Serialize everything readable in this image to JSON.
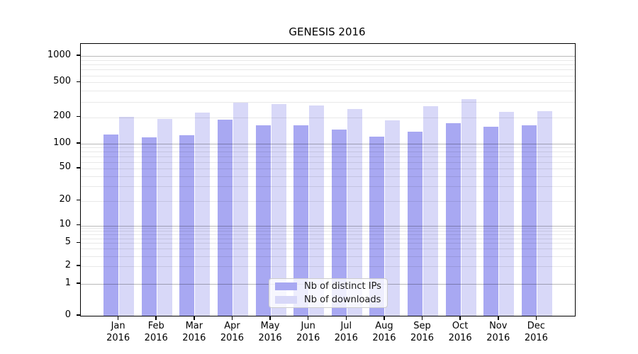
{
  "title": "GENESIS 2016",
  "chart_data": {
    "type": "bar",
    "title": "GENESIS 2016",
    "xlabel": "",
    "ylabel": "",
    "y_scale": "symlog",
    "ylim": [
      0,
      1370
    ],
    "grid": "both (major darker, minor lighter), drawn over bars",
    "legend_position": "lower center inside axes",
    "categories": [
      "Jan",
      "Feb",
      "Mar",
      "Apr",
      "May",
      "Jun",
      "Jul",
      "Aug",
      "Sep",
      "Oct",
      "Nov",
      "Dec"
    ],
    "category_year": "2016",
    "yticks": [
      0,
      1,
      2,
      5,
      10,
      20,
      50,
      100,
      200,
      500,
      1000
    ],
    "series": [
      {
        "name": "Nb of distinct IPs",
        "color": "#a8a8f2",
        "values": [
          127,
          118,
          125,
          188,
          162,
          163,
          145,
          120,
          137,
          171,
          156,
          162
        ]
      },
      {
        "name": "Nb of downloads",
        "color": "#d8d8f8",
        "values": [
          201,
          190,
          226,
          293,
          283,
          272,
          247,
          185,
          270,
          321,
          230,
          234
        ]
      }
    ]
  },
  "colors": {
    "spine": "#000000",
    "major_grid": "#b8b8b8",
    "minor_grid": "#e8e8e8",
    "legend_border": "#cccccc"
  }
}
